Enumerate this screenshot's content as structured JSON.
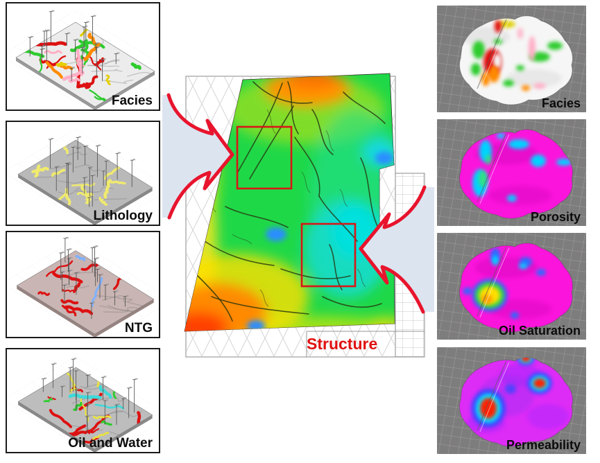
{
  "page": {
    "background": "#ffffff"
  },
  "left_panels": [
    {
      "label": "Facies",
      "surface": "#ececec",
      "edge": "#999999",
      "patches": [
        [
          "#dd1111",
          9
        ],
        [
          "#2ecc2e",
          11
        ],
        [
          "#ff8a00",
          4
        ],
        [
          "#e3cf00",
          3
        ],
        [
          "#ffafc6",
          5
        ]
      ]
    },
    {
      "label": "Lithology",
      "surface": "#b9b9b9",
      "edge": "#888888",
      "patches": [
        [
          "#f0ea6e",
          14
        ]
      ]
    },
    {
      "label": "NTG",
      "surface": "#c9b5b3",
      "edge": "#968380",
      "patches": [
        [
          "#dd1111",
          10
        ],
        [
          "#7fb2ff",
          2
        ]
      ]
    },
    {
      "label": "Oil and Water",
      "surface": "#bdbdbd",
      "edge": "#888888",
      "patches": [
        [
          "#dd1111",
          10
        ],
        [
          "#e8e240",
          6
        ],
        [
          "#2ecc2e",
          4
        ],
        [
          "#3fd9d9",
          3
        ]
      ]
    }
  ],
  "center": {
    "label": "Structure",
    "label_color": "#e01111",
    "frame_color": "#8a8a8a",
    "highlight_box_color": "#d81717",
    "map_palette": {
      "green": "#1fd848",
      "orange": "#ff9400",
      "deep_orange": "#ff7000",
      "red": "#ff4000",
      "yellow": "#ffe81e",
      "cyan": "#19dcc8",
      "blue": "#2b8dff"
    }
  },
  "right_panels": [
    {
      "label": "Facies",
      "body": "#f6f6f6"
    },
    {
      "label": "Porosity",
      "body": "#fb14dc"
    },
    {
      "label": "Oil Saturation",
      "body": "#fb14dc"
    },
    {
      "label": "Permeability",
      "body": "#de2cf7"
    }
  ],
  "arrows": {
    "fill": "#dce4f0",
    "outline": "#e8142d"
  }
}
